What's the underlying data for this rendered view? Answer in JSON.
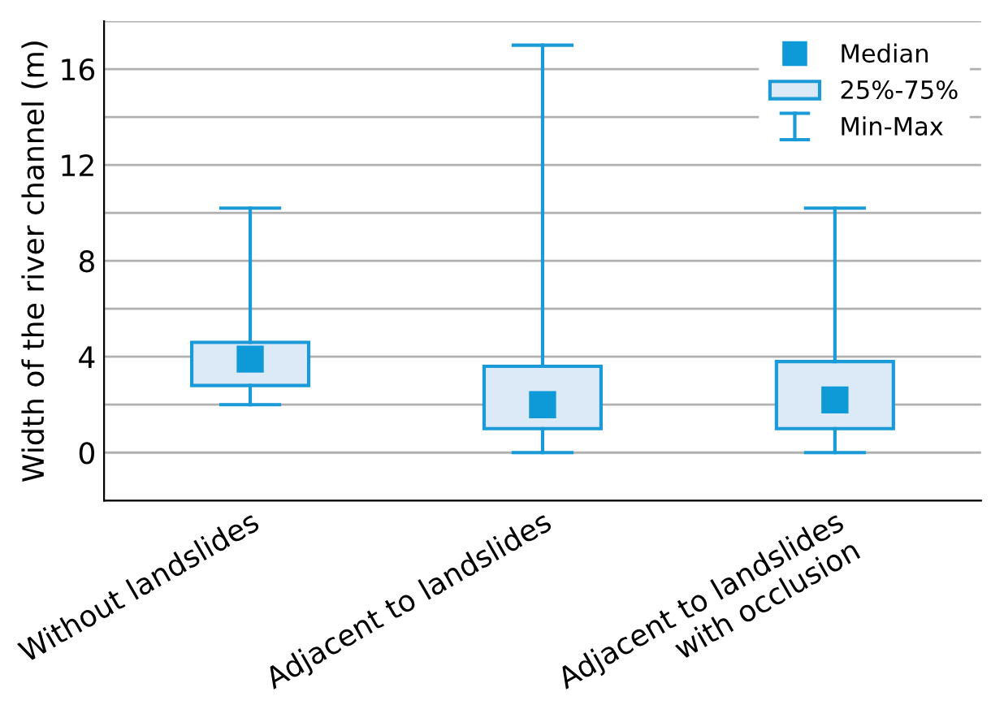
{
  "chart_data": {
    "type": "box",
    "ylabel": "Width of the river channel (m)",
    "categories": [
      "Without landslides",
      "Adjacent to landslides",
      "Adjacent to landslides\nwith occlusion"
    ],
    "series": [
      {
        "name": "Median",
        "type": "scatter",
        "color": "#0e9ad7",
        "marker": "square",
        "values": [
          3.9,
          2.0,
          2.2
        ]
      },
      {
        "name": "25%-75%",
        "type": "box",
        "color": "#1a9ad6",
        "boxes": [
          {
            "low": 2.0,
            "q1": 2.8,
            "q3": 4.6,
            "high": 10.2
          },
          {
            "low": 0,
            "q1": 1.0,
            "q3": 3.6,
            "high": 17
          },
          {
            "low": 0,
            "q1": 1.0,
            "q3": 3.8,
            "high": 10.2
          }
        ]
      }
    ],
    "annotations": [
      "Min-Max"
    ],
    "ylim": [
      -2,
      18
    ],
    "yticks": [
      {
        "value": -2,
        "label": null
      },
      0,
      {
        "value": 2,
        "label": null
      },
      4,
      {
        "value": 6,
        "label": null
      },
      8,
      {
        "value": 10,
        "label": null
      },
      12,
      {
        "value": 14,
        "label": null
      },
      16,
      {
        "value": 18,
        "label": null
      }
    ],
    "grid": "y",
    "legend": "top right"
  }
}
